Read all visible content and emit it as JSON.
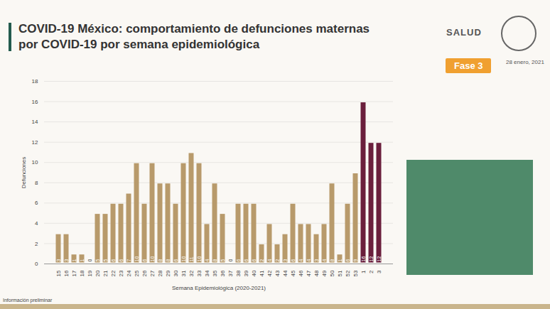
{
  "chart_data": {
    "type": "bar",
    "title": "COVID-19 México: comportamiento de defunciones maternas por COVID-19 por semana epidemiológica",
    "x_label": "Semana Epidemiológica (2020-2021)",
    "y_label": "Defunciones",
    "categories": [
      "15",
      "16",
      "17",
      "18",
      "19",
      "20",
      "21",
      "22",
      "23",
      "24",
      "25",
      "26",
      "27",
      "28",
      "29",
      "30",
      "31",
      "32",
      "33",
      "34",
      "35",
      "36",
      "37",
      "38",
      "39",
      "40",
      "41",
      "42",
      "43",
      "44",
      "45",
      "46",
      "47",
      "48",
      "49",
      "50",
      "51",
      "52",
      "53",
      "1",
      "2",
      "3"
    ],
    "values": [
      3,
      3,
      1,
      1,
      0,
      5,
      5,
      6,
      6,
      7,
      10,
      6,
      10,
      8,
      8,
      6,
      10,
      11,
      10,
      4,
      8,
      5,
      0,
      6,
      6,
      6,
      2,
      4,
      2,
      3,
      6,
      4,
      4,
      3,
      4,
      8,
      1,
      6,
      9,
      16,
      12,
      12
    ],
    "colors": [
      "#b89a6b",
      "#b89a6b",
      "#b89a6b",
      "#b89a6b",
      "#b89a6b",
      "#b89a6b",
      "#b89a6b",
      "#b89a6b",
      "#b89a6b",
      "#b89a6b",
      "#b89a6b",
      "#b89a6b",
      "#b89a6b",
      "#b89a6b",
      "#b89a6b",
      "#b89a6b",
      "#b89a6b",
      "#b89a6b",
      "#b89a6b",
      "#b89a6b",
      "#b89a6b",
      "#b89a6b",
      "#b89a6b",
      "#b89a6b",
      "#b89a6b",
      "#b89a6b",
      "#b89a6b",
      "#b89a6b",
      "#b89a6b",
      "#b89a6b",
      "#b89a6b",
      "#b89a6b",
      "#b89a6b",
      "#b89a6b",
      "#b89a6b",
      "#b89a6b",
      "#b89a6b",
      "#b89a6b",
      "#b89a6b",
      "#6b1f3c",
      "#6b1f3c",
      "#6b1f3c"
    ],
    "ylim": [
      0,
      18
    ],
    "yticks": [
      0,
      2,
      4,
      6,
      8,
      10,
      12,
      14,
      16,
      18
    ],
    "grid": true,
    "data_labels": true,
    "logo_text": "SALUD",
    "badge": "Fase 3",
    "date": "28 enero, 2021",
    "note": "Información preliminar"
  }
}
